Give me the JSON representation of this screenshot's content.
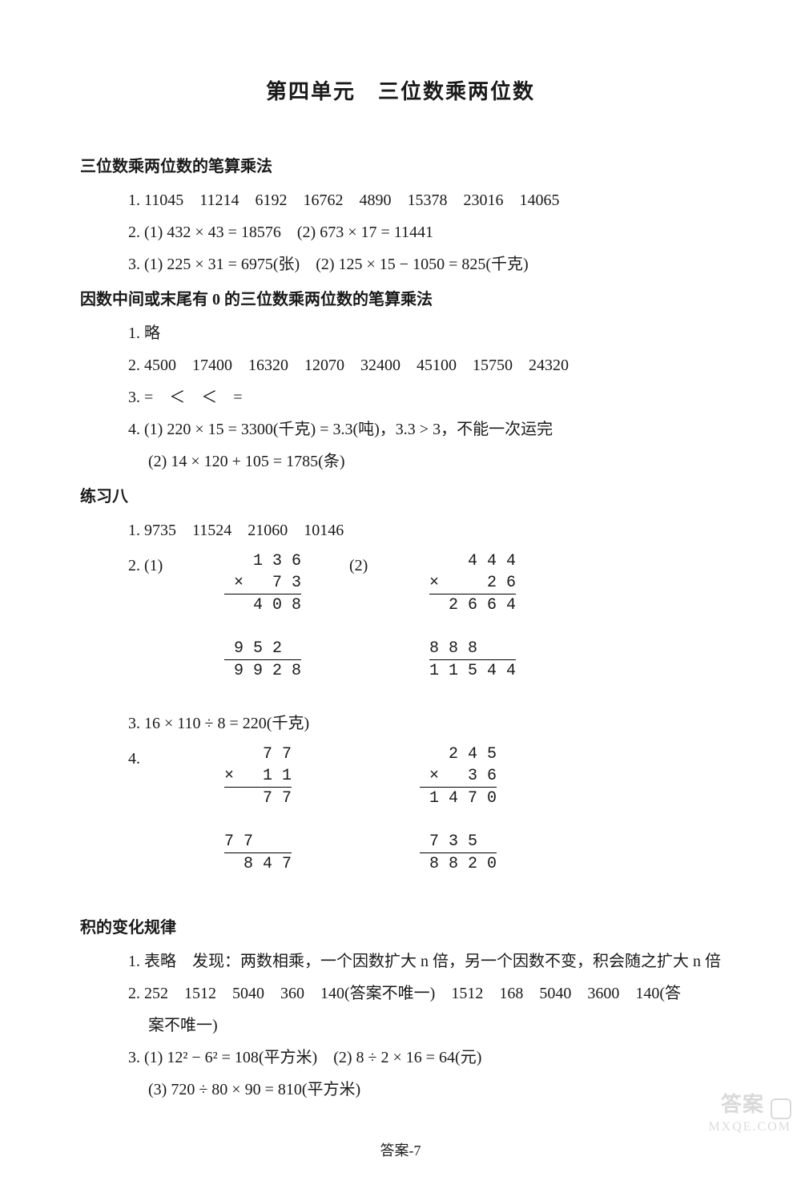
{
  "title": "第四单元　三位数乘两位数",
  "sections": [
    {
      "heading": "三位数乘两位数的笔算乘法",
      "lines": [
        "1. 11045　11214　6192　16762　4890　15378　23016　14065",
        "2. (1) 432 × 43 = 18576　(2) 673 × 17 = 11441",
        "3. (1) 225 × 31 = 6975(张)　(2) 125 × 15 − 1050 = 825(千克)"
      ]
    },
    {
      "heading": "因数中间或末尾有 0 的三位数乘两位数的笔算乘法",
      "lines": [
        "1. 略",
        "2. 4500　17400　16320　12070　32400　45100　15750　24320",
        "3. =　＜　＜　=",
        "4. (1) 220 × 15 = 3300(千克) = 3.3(吨)，3.3 > 3，不能一次运完",
        "　 (2) 14 × 120 + 105 = 1785(条)"
      ]
    },
    {
      "heading": "练习八",
      "lines_a": [
        "1. 9735　11524　21060　10146"
      ],
      "vert_group_1": {
        "label_prefix": "2. (1)",
        "label_mid": "(2)",
        "left": [
          "  1 3 6",
          "×   7 3",
          "  4 0 8",
          "9 5 2  ",
          " 9 9 2 8"
        ],
        "right": [
          "    4 4 4",
          "×     2 6",
          "  2 6 6 4",
          "8 8 8    ",
          "1 1 5 4 4"
        ],
        "rules_left": [
          2,
          4
        ],
        "rules_right": [
          2,
          4
        ]
      },
      "lines_b": [
        "3. 16 × 110 ÷ 8 = 220(千克)"
      ],
      "vert_group_2": {
        "label_prefix": "4.",
        "left": [
          "    7 7",
          "×   1 1",
          "    7 7",
          "7 7    ",
          "  8 4 7"
        ],
        "right": [
          "  2 4 5",
          "×   3 6",
          " 1 4 7 0",
          "7 3 5  ",
          " 8 8 2 0"
        ],
        "rules_left": [
          2,
          4
        ],
        "rules_right": [
          2,
          4
        ]
      }
    },
    {
      "heading": "积的变化规律",
      "lines": [
        "1. 表略　发现：两数相乘，一个因数扩大 n 倍，另一个因数不变，积会随之扩大 n 倍",
        "2. 252　1512　5040　360　140(答案不唯一)　1512　168　5040　3600　140(答",
        "　 案不唯一)",
        "3. (1) 12² − 6² = 108(平方米)　(2) 8 ÷ 2 × 16 = 64(元)",
        "　 (3) 720 ÷ 80 × 90 = 810(平方米)"
      ]
    }
  ],
  "footer": "答案-7",
  "watermark": {
    "line1": "答案",
    "line2": "MXQE.COM"
  }
}
